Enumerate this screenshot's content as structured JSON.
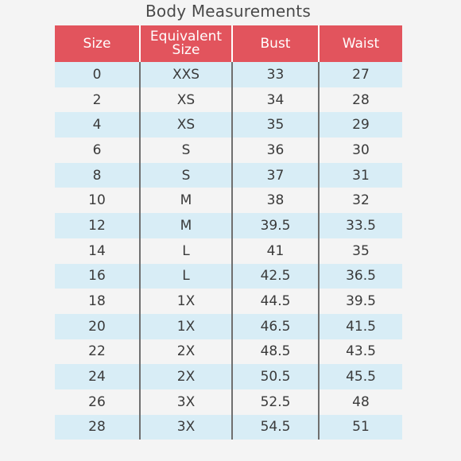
{
  "title": "Body Measurements",
  "colors": {
    "header_bg": "#e2545d",
    "header_text": "#ffffff",
    "row_stripe": "#d8edf6",
    "row_plain": "#f4f4f4"
  },
  "table": {
    "headers": [
      "Size",
      "Equivalent Size",
      "Bust",
      "Waist"
    ],
    "rows": [
      [
        "0",
        "XXS",
        "33",
        "27"
      ],
      [
        "2",
        "XS",
        "34",
        "28"
      ],
      [
        "4",
        "XS",
        "35",
        "29"
      ],
      [
        "6",
        "S",
        "36",
        "30"
      ],
      [
        "8",
        "S",
        "37",
        "31"
      ],
      [
        "10",
        "M",
        "38",
        "32"
      ],
      [
        "12",
        "M",
        "39.5",
        "33.5"
      ],
      [
        "14",
        "L",
        "41",
        "35"
      ],
      [
        "16",
        "L",
        "42.5",
        "36.5"
      ],
      [
        "18",
        "1X",
        "44.5",
        "39.5"
      ],
      [
        "20",
        "1X",
        "46.5",
        "41.5"
      ],
      [
        "22",
        "2X",
        "48.5",
        "43.5"
      ],
      [
        "24",
        "2X",
        "50.5",
        "45.5"
      ],
      [
        "26",
        "3X",
        "52.5",
        "48"
      ],
      [
        "28",
        "3X",
        "54.5",
        "51"
      ]
    ]
  }
}
